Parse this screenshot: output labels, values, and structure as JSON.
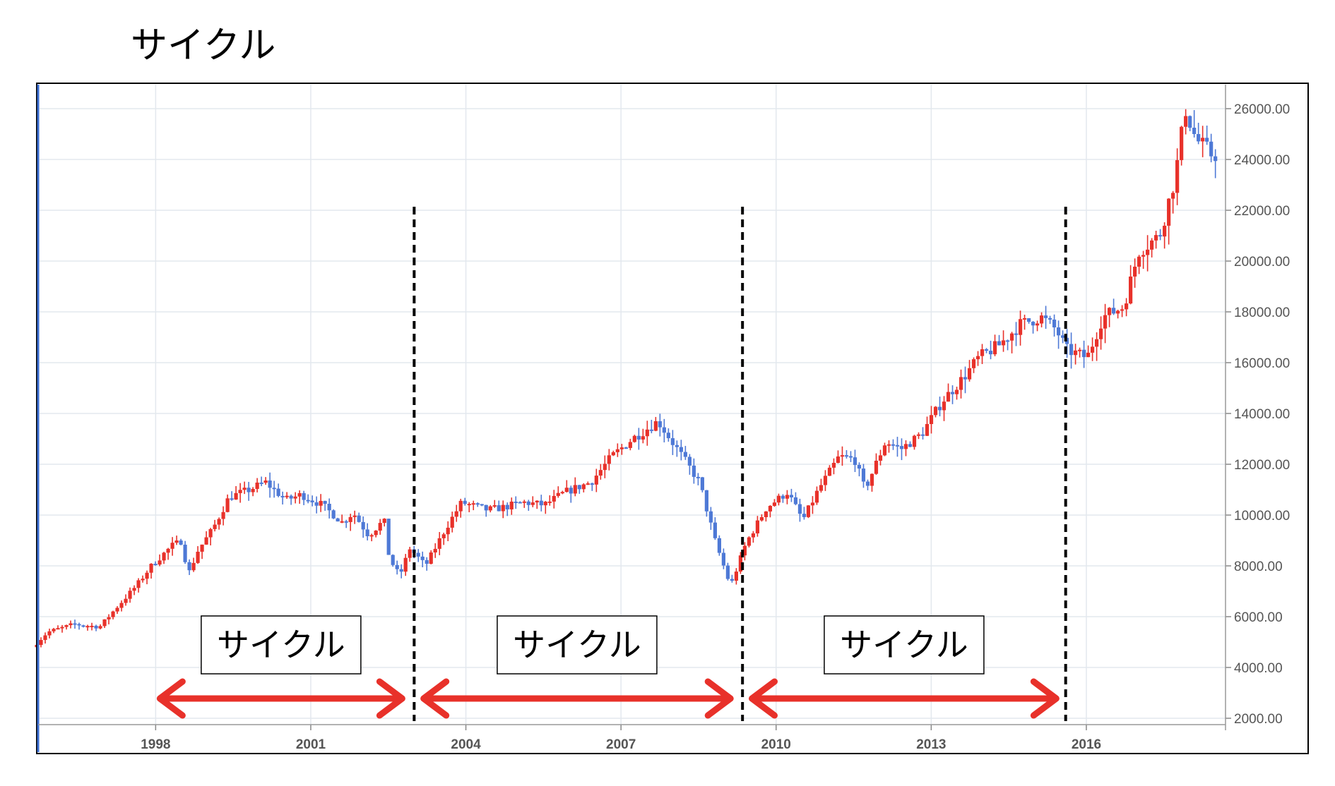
{
  "page": {
    "title": "サイクル"
  },
  "colors": {
    "up": "#e8312a",
    "down": "#4e79d6",
    "grid": "#e3e8ee",
    "frame": "#000000",
    "axis_text": "#555555",
    "arrow": "#e8312a",
    "divider": "#000000"
  },
  "chart_data": {
    "type": "candlestick",
    "title": "",
    "xlabel": "",
    "ylabel": "",
    "x_ticks": [
      "1998",
      "2001",
      "2004",
      "2007",
      "2010",
      "2013",
      "2016"
    ],
    "y_ticks": [
      "2000.00",
      "4000.00",
      "6000.00",
      "8000.00",
      "10000.00",
      "12000.00",
      "14000.00",
      "16000.00",
      "18000.00",
      "20000.00",
      "22000.00",
      "24000.00",
      "26000.00"
    ],
    "ylim": [
      2000,
      26500
    ],
    "xlim": [
      1995.7,
      2018.7
    ],
    "grid": true,
    "y_axis_side": "right",
    "path": [
      [
        1995.7,
        4800
      ],
      [
        1996.0,
        5400
      ],
      [
        1996.5,
        5700
      ],
      [
        1997.0,
        5600
      ],
      [
        1997.3,
        6300
      ],
      [
        1997.7,
        7200
      ],
      [
        1998.0,
        8000
      ],
      [
        1998.4,
        8800
      ],
      [
        1998.6,
        9000
      ],
      [
        1998.7,
        7600
      ],
      [
        1998.9,
        8600
      ],
      [
        1999.2,
        9500
      ],
      [
        1999.5,
        10700
      ],
      [
        1999.9,
        11000
      ],
      [
        2000.2,
        11300
      ],
      [
        2000.6,
        10600
      ],
      [
        2000.9,
        10800
      ],
      [
        2001.3,
        10400
      ],
      [
        2001.7,
        9700
      ],
      [
        2001.9,
        10100
      ],
      [
        2002.2,
        9200
      ],
      [
        2002.5,
        9800
      ],
      [
        2002.6,
        8300
      ],
      [
        2002.8,
        7600
      ],
      [
        2003.0,
        8700
      ],
      [
        2003.3,
        8000
      ],
      [
        2003.7,
        9500
      ],
      [
        2004.0,
        10500
      ],
      [
        2004.5,
        10200
      ],
      [
        2004.8,
        10300
      ],
      [
        2005.2,
        10500
      ],
      [
        2005.6,
        10400
      ],
      [
        2006.0,
        10900
      ],
      [
        2006.5,
        11300
      ],
      [
        2006.9,
        12300
      ],
      [
        2007.3,
        13000
      ],
      [
        2007.8,
        13700
      ],
      [
        2008.2,
        12500
      ],
      [
        2008.6,
        11300
      ],
      [
        2008.9,
        9000
      ],
      [
        2009.2,
        7200
      ],
      [
        2009.5,
        8900
      ],
      [
        2009.9,
        10300
      ],
      [
        2010.3,
        10900
      ],
      [
        2010.6,
        9800
      ],
      [
        2010.9,
        11000
      ],
      [
        2011.3,
        12300
      ],
      [
        2011.6,
        12200
      ],
      [
        2011.8,
        11000
      ],
      [
        2012.2,
        12900
      ],
      [
        2012.5,
        12600
      ],
      [
        2012.9,
        13200
      ],
      [
        2013.3,
        14500
      ],
      [
        2013.7,
        15400
      ],
      [
        2014.0,
        16200
      ],
      [
        2014.4,
        16700
      ],
      [
        2014.8,
        17500
      ],
      [
        2015.2,
        17800
      ],
      [
        2015.5,
        17300
      ],
      [
        2015.7,
        16500
      ],
      [
        2016.1,
        16200
      ],
      [
        2016.4,
        17800
      ],
      [
        2016.8,
        18200
      ],
      [
        2017.1,
        20400
      ],
      [
        2017.5,
        21000
      ],
      [
        2017.8,
        23300
      ],
      [
        2018.0,
        26000
      ],
      [
        2018.2,
        24800
      ],
      [
        2018.5,
        24200
      ]
    ],
    "cycle_dividers": [
      2003.0,
      2009.35,
      2015.6
    ],
    "cycle_ranges": [
      {
        "start": 1998.0,
        "end": 2002.85,
        "label": "サイクル"
      },
      {
        "start": 2003.1,
        "end": 2009.2,
        "label": "サイクル"
      },
      {
        "start": 2009.45,
        "end": 2015.5,
        "label": "サイクル"
      }
    ]
  }
}
